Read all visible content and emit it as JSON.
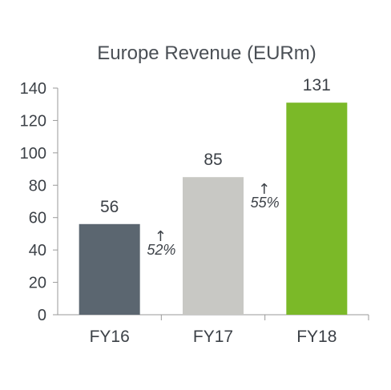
{
  "chart_data": {
    "type": "bar",
    "title": "Europe Revenue (EURm)",
    "categories": [
      "FY16",
      "FY17",
      "FY18"
    ],
    "values": [
      56,
      85,
      131
    ],
    "data_labels": [
      "56",
      "85",
      "131"
    ],
    "ylim": [
      0,
      140
    ],
    "yticks": [
      0,
      20,
      40,
      60,
      80,
      100,
      120,
      140
    ],
    "bar_colors": [
      "#5b6670",
      "#c8c8c4",
      "#7bb928"
    ],
    "axis_color": "#9a9a9a",
    "grid": false,
    "growth_annotations": [
      {
        "arrow": "↑",
        "label": "52%"
      },
      {
        "arrow": "↑",
        "label": "55%"
      }
    ]
  }
}
